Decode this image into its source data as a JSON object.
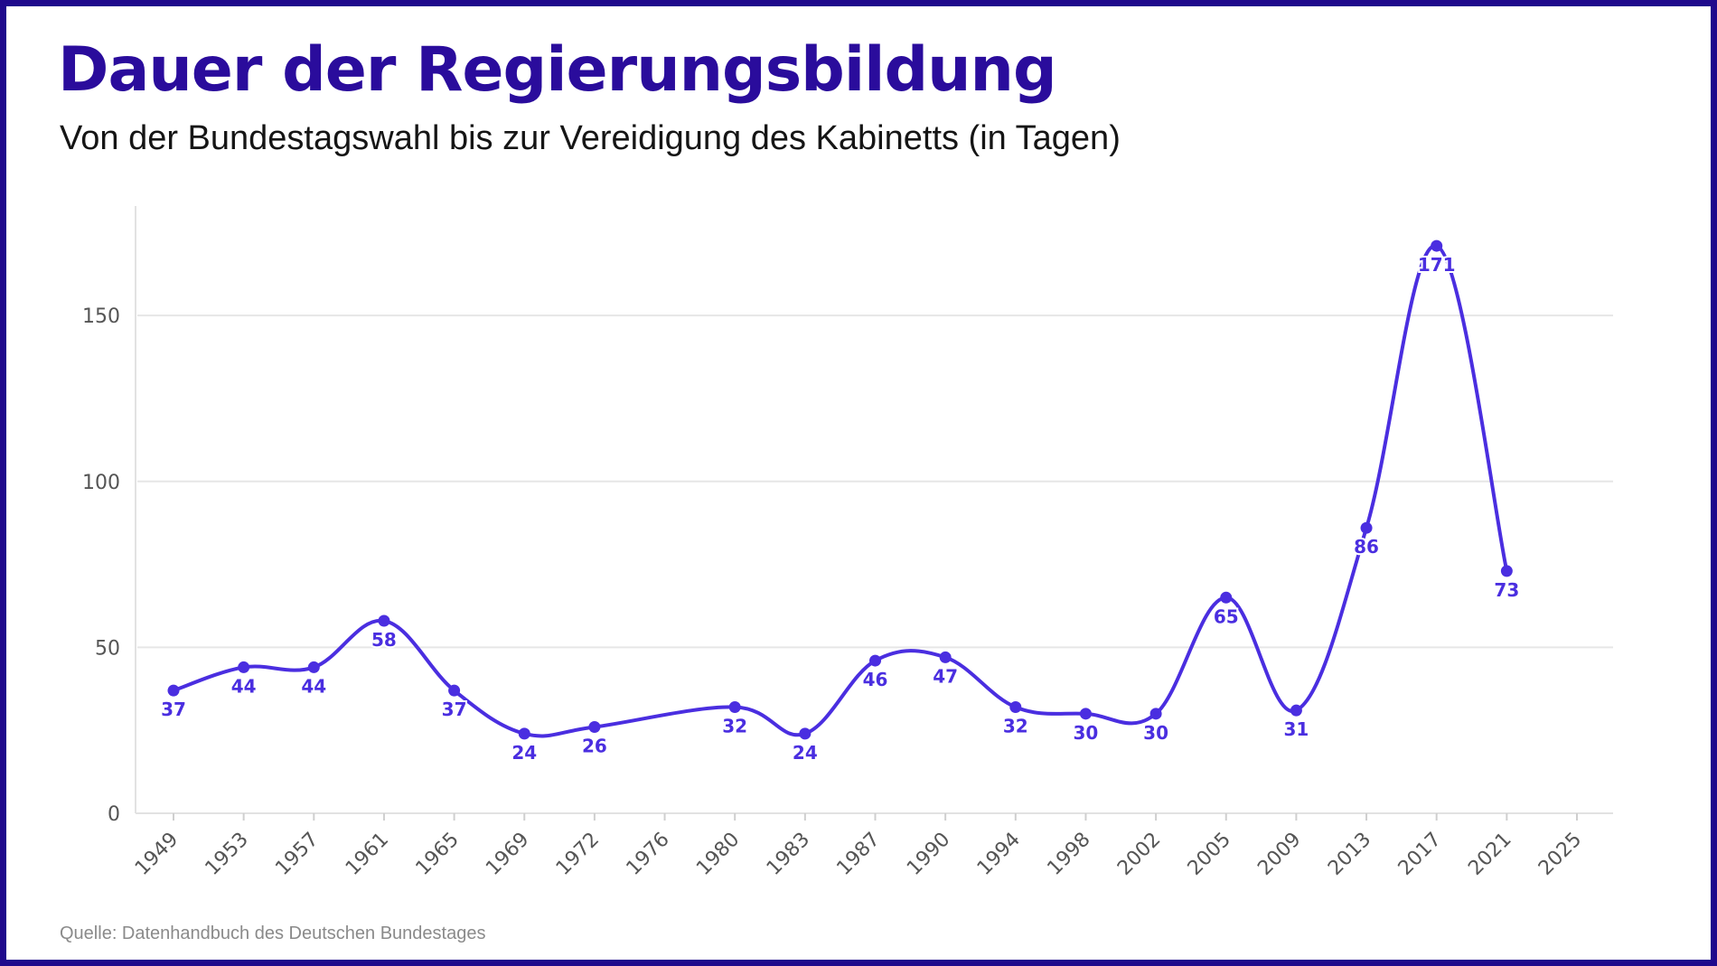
{
  "header": {
    "title": "Dauer der Regierungsbildung",
    "subtitle": "Von der Bundestagswahl bis zur Vereidigung des Kabinetts (in Tagen)"
  },
  "footer": {
    "source": "Quelle: Datenhandbuch des Deutschen Bundestages"
  },
  "colors": {
    "frame": "#1f0a8c",
    "title": "#2a0c9c",
    "series": "#4a2ee0",
    "grid": "#e6e6e6"
  },
  "chart_data": {
    "type": "line",
    "title": "Dauer der Regierungsbildung",
    "subtitle": "Von der Bundestagswahl bis zur Vereidigung des Kabinetts (in Tagen)",
    "xlabel": "",
    "ylabel": "",
    "categories": [
      "1949",
      "1953",
      "1957",
      "1961",
      "1965",
      "1969",
      "1972",
      "1976",
      "1980",
      "1983",
      "1987",
      "1990",
      "1994",
      "1998",
      "2002",
      "2005",
      "2009",
      "2013",
      "2017",
      "2021",
      "2025"
    ],
    "series": [
      {
        "values": [
          37,
          44,
          44,
          58,
          37,
          24,
          26,
          null,
          32,
          24,
          46,
          47,
          32,
          30,
          30,
          65,
          31,
          86,
          171,
          73,
          null
        ]
      }
    ],
    "y_ticks": [
      0,
      50,
      100,
      150
    ],
    "ylim": [
      0,
      183
    ],
    "grid": "horizontal",
    "legend": "none",
    "smooth": true,
    "data_labels": true
  }
}
